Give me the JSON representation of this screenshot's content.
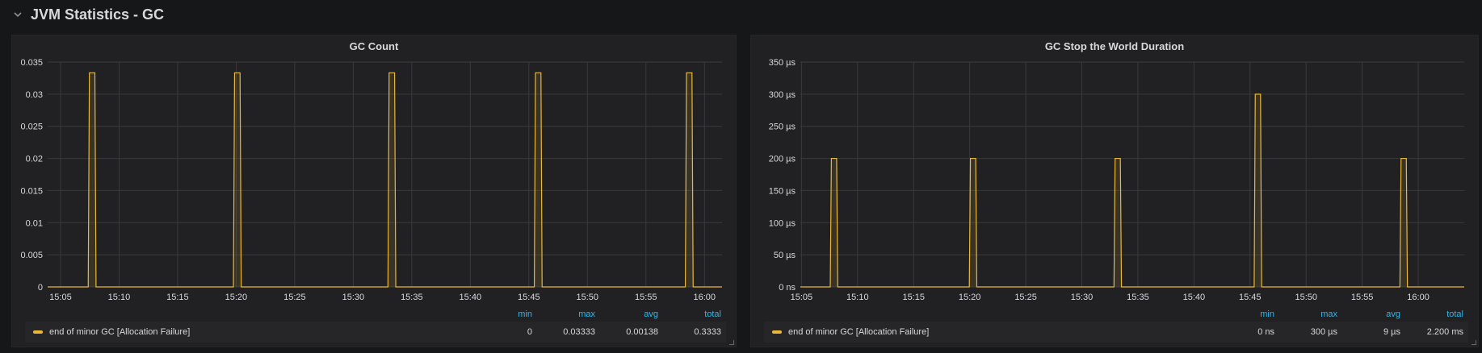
{
  "row": {
    "title": "JVM Statistics - GC",
    "collapse_icon": "chevron-down-icon"
  },
  "panels": [
    {
      "title": "GC Count",
      "legend": {
        "headers": [
          "min",
          "max",
          "avg",
          "total"
        ],
        "series_name": "end of minor GC [Allocation Failure]",
        "values": [
          "0",
          "0.03333",
          "0.00138",
          "0.3333"
        ]
      }
    },
    {
      "title": "GC Stop the World Duration",
      "legend": {
        "headers": [
          "min",
          "max",
          "avg",
          "total"
        ],
        "series_name": "end of minor GC [Allocation Failure]",
        "values": [
          "0 ns",
          "300 µs",
          "9 µs",
          "2.200 ms"
        ]
      }
    }
  ],
  "colors": {
    "series": "#EAB839",
    "legend_header": "#33b5e5",
    "grid": "#3a3a3c"
  },
  "chart_data": [
    {
      "type": "line",
      "title": "GC Count",
      "xlabel": "",
      "ylabel": "",
      "xlim": [
        "15:03:54",
        "16:01:30"
      ],
      "ylim": [
        0,
        0.035
      ],
      "xticks": [
        "15:05",
        "15:10",
        "15:15",
        "15:20",
        "15:25",
        "15:30",
        "15:35",
        "15:40",
        "15:45",
        "15:50",
        "15:55",
        "16:00"
      ],
      "yticks": [
        {
          "v": 0,
          "label": "0"
        },
        {
          "v": 0.005,
          "label": "0.005"
        },
        {
          "v": 0.01,
          "label": "0.01"
        },
        {
          "v": 0.015,
          "label": "0.015"
        },
        {
          "v": 0.02,
          "label": "0.02"
        },
        {
          "v": 0.025,
          "label": "0.025"
        },
        {
          "v": 0.03,
          "label": "0.03"
        },
        {
          "v": 0.035,
          "label": "0.035"
        }
      ],
      "grid": true,
      "series": [
        {
          "name": "end of minor GC [Allocation Failure]",
          "baseline": 0,
          "peaks": [
            {
              "t": "15:07:42",
              "v": 0.03333
            },
            {
              "t": "15:20:06",
              "v": 0.03333
            },
            {
              "t": "15:33:18",
              "v": 0.03333
            },
            {
              "t": "15:45:48",
              "v": 0.03333
            },
            {
              "t": "15:58:42",
              "v": 0.03333
            }
          ]
        }
      ]
    },
    {
      "type": "line",
      "title": "GC Stop the World Duration",
      "xlabel": "",
      "ylabel": "",
      "xlim": [
        "15:04:54",
        "16:04:06"
      ],
      "ylim": [
        0,
        350
      ],
      "xticks": [
        "15:05",
        "15:10",
        "15:15",
        "15:20",
        "15:25",
        "15:30",
        "15:35",
        "15:40",
        "15:45",
        "15:50",
        "15:55",
        "16:00"
      ],
      "yticks": [
        {
          "v": 0,
          "label": "0 ns"
        },
        {
          "v": 50,
          "label": "50 µs"
        },
        {
          "v": 100,
          "label": "100 µs"
        },
        {
          "v": 150,
          "label": "150 µs"
        },
        {
          "v": 200,
          "label": "200 µs"
        },
        {
          "v": 250,
          "label": "250 µs"
        },
        {
          "v": 300,
          "label": "300 µs"
        },
        {
          "v": 350,
          "label": "350 µs"
        }
      ],
      "grid": true,
      "series": [
        {
          "name": "end of minor GC [Allocation Failure]",
          "baseline": 0,
          "unit": "µs",
          "peaks": [
            {
              "t": "15:07:54",
              "v": 200
            },
            {
              "t": "15:20:18",
              "v": 200
            },
            {
              "t": "15:33:12",
              "v": 200
            },
            {
              "t": "15:45:42",
              "v": 300
            },
            {
              "t": "15:58:42",
              "v": 200
            }
          ]
        }
      ]
    }
  ]
}
